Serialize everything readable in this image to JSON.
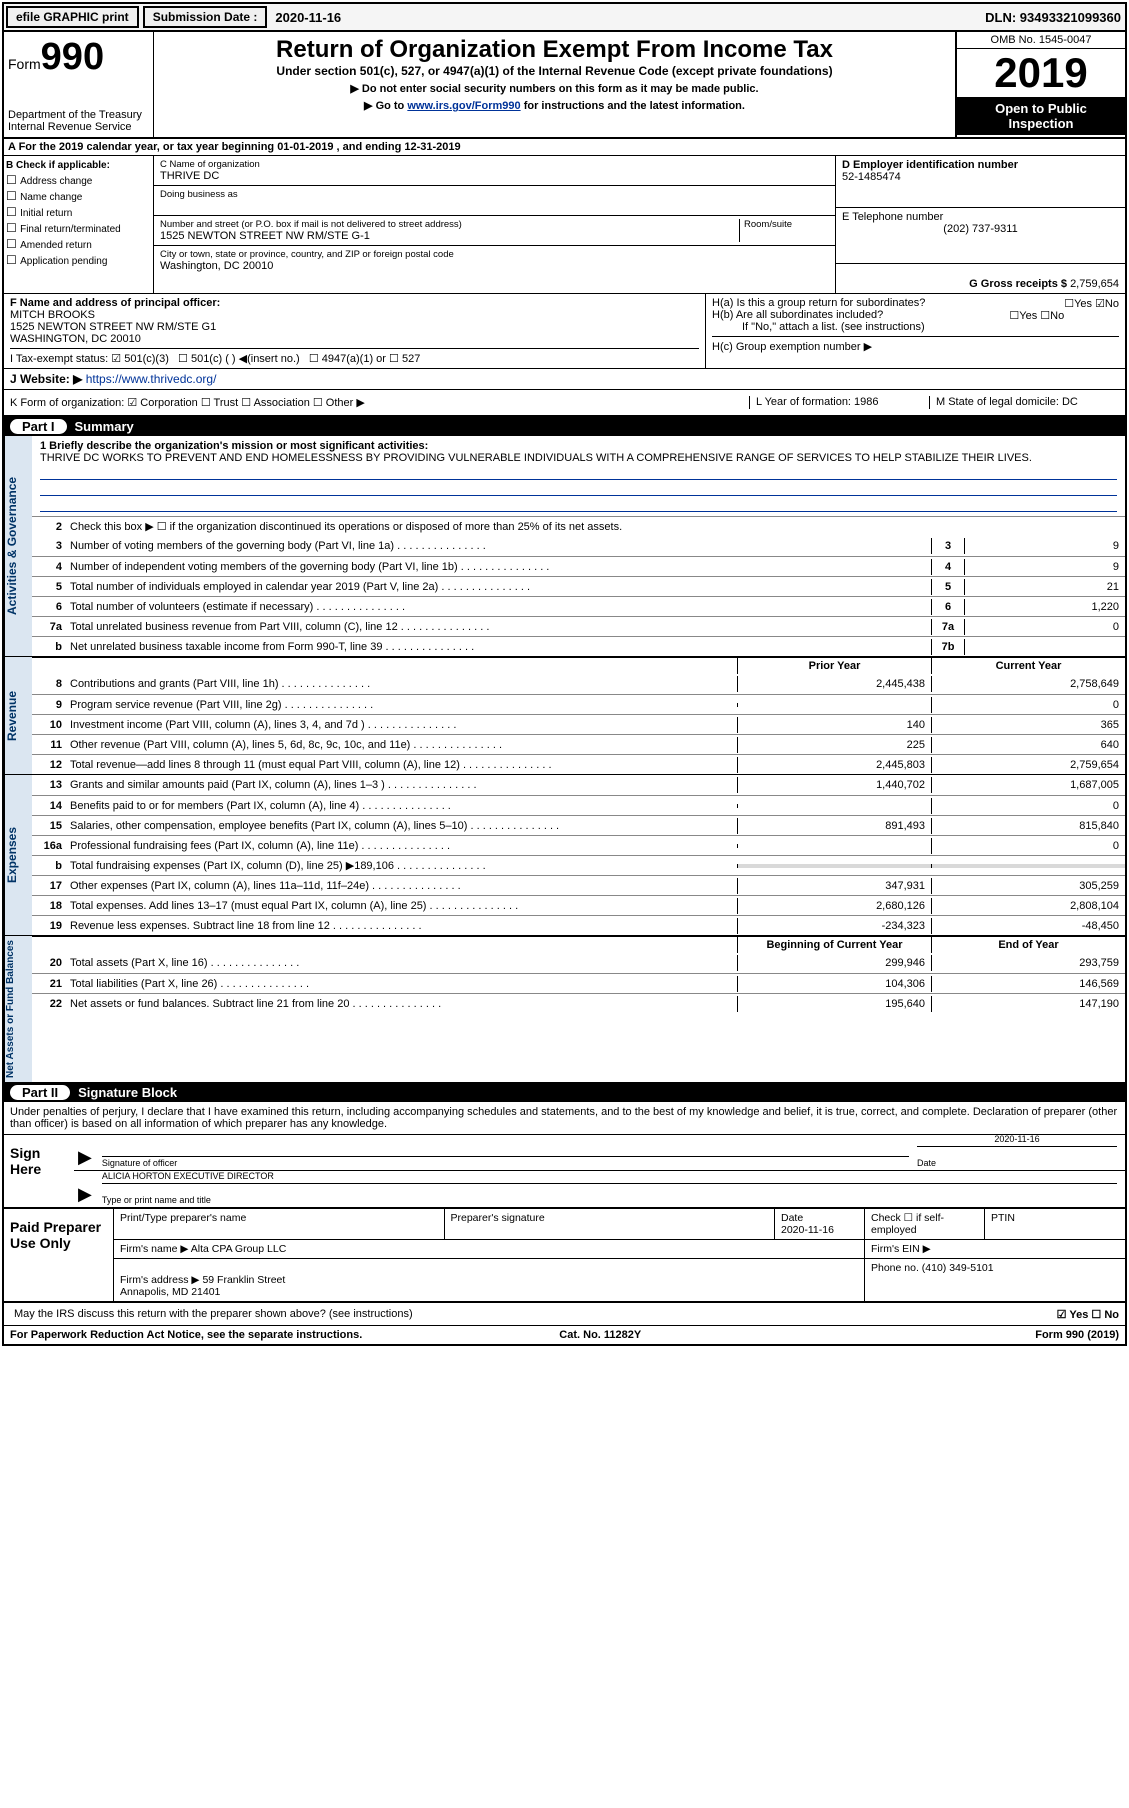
{
  "top": {
    "efile": "efile GRAPHIC print",
    "sub_label": "Submission Date :",
    "sub_date": "2020-11-16",
    "dln": "DLN: 93493321099360"
  },
  "header": {
    "form_label": "Form",
    "form_num": "990",
    "dept": "Department of the Treasury\nInternal Revenue Service",
    "title": "Return of Organization Exempt From Income Tax",
    "sub1": "Under section 501(c), 527, or 4947(a)(1) of the Internal Revenue Code (except private foundations)",
    "sub2": "▶ Do not enter social security numbers on this form as it may be made public.",
    "sub3_pre": "▶ Go to ",
    "sub3_link": "www.irs.gov/Form990",
    "sub3_post": " for instructions and the latest information.",
    "omb": "OMB No. 1545-0047",
    "year": "2019",
    "open": "Open to Public Inspection"
  },
  "rowA": "A   For the 2019 calendar year, or tax year beginning 01-01-2019    , and ending 12-31-2019",
  "colB": {
    "title": "B Check if applicable:",
    "opts": [
      "Address change",
      "Name change",
      "Initial return",
      "Final return/terminated",
      "Amended return",
      "Application pending"
    ]
  },
  "colC": {
    "name_lbl": "C Name of organization",
    "name": "THRIVE DC",
    "dba_lbl": "Doing business as",
    "addr_lbl": "Number and street (or P.O. box if mail is not delivered to street address)",
    "room_lbl": "Room/suite",
    "addr": "1525 NEWTON STREET NW RM/STE G-1",
    "city_lbl": "City or town, state or province, country, and ZIP or foreign postal code",
    "city": "Washington, DC  20010"
  },
  "colD": {
    "ein_lbl": "D Employer identification number",
    "ein": "52-1485474",
    "tel_lbl": "E Telephone number",
    "tel": "(202) 737-9311",
    "gross_lbl": "G Gross receipts $",
    "gross": "2,759,654"
  },
  "rowF": {
    "lbl": "F  Name and address of principal officer:",
    "name": "MITCH BROOKS",
    "addr1": "1525 NEWTON STREET NW RM/STE G1",
    "addr2": "WASHINGTON, DC  20010"
  },
  "rowH": {
    "a": "H(a)  Is this a group return for subordinates?",
    "b": "H(b)  Are all subordinates included?",
    "bnote": "If \"No,\" attach a list. (see instructions)",
    "c": "H(c)  Group exemption number ▶"
  },
  "rowI": {
    "lbl": "I    Tax-exempt status:",
    "o1": "501(c)(3)",
    "o2": "501(c) (  ) ◀(insert no.)",
    "o3": "4947(a)(1) or",
    "o4": "527"
  },
  "rowJ": {
    "lbl": "J    Website: ▶",
    "url": "https://www.thrivedc.org/"
  },
  "rowK": "K Form of organization:   ☑ Corporation  ☐ Trust  ☐ Association  ☐ Other ▶",
  "rowL": "L Year of formation: 1986",
  "rowM": "M State of legal domicile: DC",
  "part1": {
    "title": "Summary",
    "q1_lbl": "1  Briefly describe the organization's mission or most significant activities:",
    "q1_text": "THRIVE DC WORKS TO PREVENT AND END HOMELESSNESS BY PROVIDING VULNERABLE INDIVIDUALS WITH A COMPREHENSIVE RANGE OF SERVICES TO HELP STABILIZE THEIR LIVES.",
    "q2": "Check this box ▶ ☐  if the organization discontinued its operations or disposed of more than 25% of its net assets.",
    "lines_ag": [
      {
        "n": "3",
        "d": "Number of voting members of the governing body (Part VI, line 1a)",
        "c": "3",
        "v": "9"
      },
      {
        "n": "4",
        "d": "Number of independent voting members of the governing body (Part VI, line 1b)",
        "c": "4",
        "v": "9"
      },
      {
        "n": "5",
        "d": "Total number of individuals employed in calendar year 2019 (Part V, line 2a)",
        "c": "5",
        "v": "21"
      },
      {
        "n": "6",
        "d": "Total number of volunteers (estimate if necessary)",
        "c": "6",
        "v": "1,220"
      },
      {
        "n": "7a",
        "d": "Total unrelated business revenue from Part VIII, column (C), line 12",
        "c": "7a",
        "v": "0"
      },
      {
        "n": "b",
        "d": "Net unrelated business taxable income from Form 990-T, line 39",
        "c": "7b",
        "v": ""
      }
    ],
    "prior_hdr": "Prior Year",
    "curr_hdr": "Current Year",
    "rev": [
      {
        "n": "8",
        "d": "Contributions and grants (Part VIII, line 1h)",
        "p": "2,445,438",
        "c": "2,758,649"
      },
      {
        "n": "9",
        "d": "Program service revenue (Part VIII, line 2g)",
        "p": "",
        "c": "0"
      },
      {
        "n": "10",
        "d": "Investment income (Part VIII, column (A), lines 3, 4, and 7d )",
        "p": "140",
        "c": "365"
      },
      {
        "n": "11",
        "d": "Other revenue (Part VIII, column (A), lines 5, 6d, 8c, 9c, 10c, and 11e)",
        "p": "225",
        "c": "640"
      },
      {
        "n": "12",
        "d": "Total revenue—add lines 8 through 11 (must equal Part VIII, column (A), line 12)",
        "p": "2,445,803",
        "c": "2,759,654"
      }
    ],
    "exp": [
      {
        "n": "13",
        "d": "Grants and similar amounts paid (Part IX, column (A), lines 1–3 )",
        "p": "1,440,702",
        "c": "1,687,005"
      },
      {
        "n": "14",
        "d": "Benefits paid to or for members (Part IX, column (A), line 4)",
        "p": "",
        "c": "0"
      },
      {
        "n": "15",
        "d": "Salaries, other compensation, employee benefits (Part IX, column (A), lines 5–10)",
        "p": "891,493",
        "c": "815,840"
      },
      {
        "n": "16a",
        "d": "Professional fundraising fees (Part IX, column (A), line 11e)",
        "p": "",
        "c": "0"
      },
      {
        "n": "b",
        "d": "Total fundraising expenses (Part IX, column (D), line 25) ▶189,106",
        "p": "grey",
        "c": "grey"
      },
      {
        "n": "17",
        "d": "Other expenses (Part IX, column (A), lines 11a–11d, 11f–24e)",
        "p": "347,931",
        "c": "305,259"
      },
      {
        "n": "18",
        "d": "Total expenses. Add lines 13–17 (must equal Part IX, column (A), line 25)",
        "p": "2,680,126",
        "c": "2,808,104"
      },
      {
        "n": "19",
        "d": "Revenue less expenses. Subtract line 18 from line 12",
        "p": "-234,323",
        "c": "-48,450"
      }
    ],
    "na_hdr1": "Beginning of Current Year",
    "na_hdr2": "End of Year",
    "na": [
      {
        "n": "20",
        "d": "Total assets (Part X, line 16)",
        "p": "299,946",
        "c": "293,759"
      },
      {
        "n": "21",
        "d": "Total liabilities (Part X, line 26)",
        "p": "104,306",
        "c": "146,569"
      },
      {
        "n": "22",
        "d": "Net assets or fund balances. Subtract line 21 from line 20",
        "p": "195,640",
        "c": "147,190"
      }
    ]
  },
  "part2": {
    "title": "Signature Block",
    "decl": "Under penalties of perjury, I declare that I have examined this return, including accompanying schedules and statements, and to the best of my knowledge and belief, it is true, correct, and complete. Declaration of preparer (other than officer) is based on all information of which preparer has any knowledge.",
    "sign_here": "Sign Here",
    "sig_off": "Signature of officer",
    "sig_date": "2020-11-16",
    "date_lbl": "Date",
    "typed": "ALICIA HORTON  EXECUTIVE DIRECTOR",
    "typed_lbl": "Type or print name and title",
    "paid": "Paid Preparer Use Only",
    "prep_name_lbl": "Print/Type preparer's name",
    "prep_sig_lbl": "Preparer's signature",
    "prep_date": "2020-11-16",
    "prep_check": "Check ☐ if self-employed",
    "ptin": "PTIN",
    "firm_name_lbl": "Firm's name    ▶",
    "firm_name": "Alta CPA Group LLC",
    "firm_ein": "Firm's EIN ▶",
    "firm_addr_lbl": "Firm's address ▶",
    "firm_addr": "59 Franklin Street\nAnnapolis, MD  21401",
    "firm_phone": "Phone no. (410) 349-5101",
    "may": "May the IRS discuss this return with the preparer shown above? (see instructions)",
    "may_yn": "☑ Yes  ☐ No"
  },
  "footer": {
    "l": "For Paperwork Reduction Act Notice, see the separate instructions.",
    "m": "Cat. No. 11282Y",
    "r": "Form 990 (2019)"
  }
}
